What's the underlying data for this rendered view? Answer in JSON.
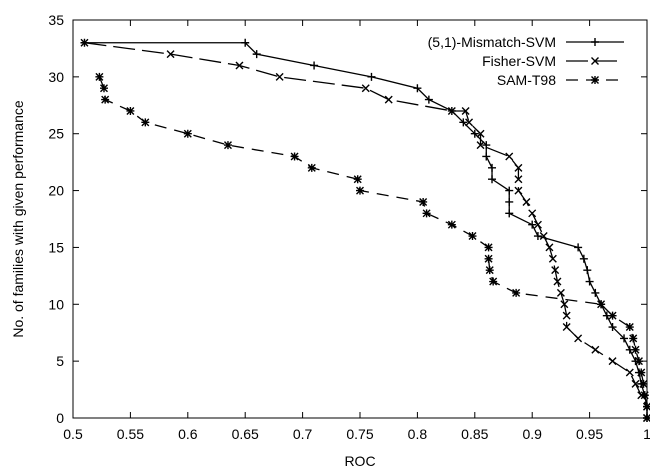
{
  "chart_data": {
    "type": "line",
    "xlabel": "ROC",
    "ylabel": "No. of families with given performance",
    "xlim": [
      0.5,
      1.0
    ],
    "ylim": [
      0,
      35
    ],
    "xticks": [
      "0.5",
      "0.55",
      "0.6",
      "0.65",
      "0.7",
      "0.75",
      "0.8",
      "0.85",
      "0.9",
      "0.95",
      "1"
    ],
    "yticks": [
      "0",
      "5",
      "10",
      "15",
      "20",
      "25",
      "30",
      "35"
    ],
    "grid": false,
    "legend_position": "top-right",
    "series": [
      {
        "name": "(5,1)-Mismatch-SVM",
        "line_style": "solid",
        "marker": "+",
        "points": [
          [
            0.51,
            33
          ],
          [
            0.65,
            33
          ],
          [
            0.66,
            32
          ],
          [
            0.71,
            31
          ],
          [
            0.76,
            30
          ],
          [
            0.8,
            29
          ],
          [
            0.81,
            28
          ],
          [
            0.83,
            27
          ],
          [
            0.84,
            26
          ],
          [
            0.85,
            25
          ],
          [
            0.86,
            24
          ],
          [
            0.86,
            23
          ],
          [
            0.865,
            22
          ],
          [
            0.865,
            21
          ],
          [
            0.88,
            20
          ],
          [
            0.88,
            19
          ],
          [
            0.88,
            18
          ],
          [
            0.9,
            17
          ],
          [
            0.905,
            16
          ],
          [
            0.94,
            15
          ],
          [
            0.945,
            14
          ],
          [
            0.948,
            13
          ],
          [
            0.95,
            12
          ],
          [
            0.955,
            11
          ],
          [
            0.96,
            10
          ],
          [
            0.965,
            9
          ],
          [
            0.97,
            8
          ],
          [
            0.98,
            7
          ],
          [
            0.985,
            6
          ],
          [
            0.99,
            5
          ],
          [
            0.993,
            4
          ],
          [
            0.995,
            3
          ],
          [
            0.998,
            2
          ],
          [
            1.0,
            1
          ],
          [
            1.0,
            0
          ]
        ]
      },
      {
        "name": "Fisher-SVM",
        "line_style": "long-dash",
        "marker": "x",
        "points": [
          [
            0.51,
            33
          ],
          [
            0.585,
            32
          ],
          [
            0.645,
            31
          ],
          [
            0.68,
            30
          ],
          [
            0.755,
            29
          ],
          [
            0.775,
            28
          ],
          [
            0.83,
            27
          ],
          [
            0.842,
            27
          ],
          [
            0.845,
            26
          ],
          [
            0.855,
            25
          ],
          [
            0.855,
            24
          ],
          [
            0.88,
            23
          ],
          [
            0.888,
            22
          ],
          [
            0.888,
            21
          ],
          [
            0.888,
            20
          ],
          [
            0.895,
            19
          ],
          [
            0.9,
            18
          ],
          [
            0.905,
            17
          ],
          [
            0.91,
            16
          ],
          [
            0.915,
            15
          ],
          [
            0.918,
            14
          ],
          [
            0.92,
            13
          ],
          [
            0.922,
            12
          ],
          [
            0.925,
            11
          ],
          [
            0.928,
            10
          ],
          [
            0.93,
            9
          ],
          [
            0.93,
            8
          ],
          [
            0.94,
            7
          ],
          [
            0.955,
            6
          ],
          [
            0.97,
            5
          ],
          [
            0.985,
            4
          ],
          [
            0.99,
            3
          ],
          [
            0.995,
            2
          ],
          [
            1.0,
            1
          ],
          [
            1.0,
            0
          ]
        ]
      },
      {
        "name": "SAM-T98",
        "line_style": "dashed",
        "marker": "square",
        "points": [
          [
            0.523,
            30
          ],
          [
            0.527,
            29
          ],
          [
            0.528,
            28
          ],
          [
            0.55,
            27
          ],
          [
            0.563,
            26
          ],
          [
            0.6,
            25
          ],
          [
            0.635,
            24
          ],
          [
            0.693,
            23
          ],
          [
            0.708,
            22
          ],
          [
            0.748,
            21
          ],
          [
            0.75,
            20
          ],
          [
            0.805,
            19
          ],
          [
            0.808,
            18
          ],
          [
            0.83,
            17
          ],
          [
            0.848,
            16
          ],
          [
            0.862,
            15
          ],
          [
            0.862,
            14
          ],
          [
            0.863,
            13
          ],
          [
            0.866,
            12
          ],
          [
            0.886,
            11
          ],
          [
            0.96,
            10
          ],
          [
            0.97,
            9
          ],
          [
            0.985,
            8
          ],
          [
            0.988,
            7
          ],
          [
            0.99,
            6
          ],
          [
            0.993,
            5
          ],
          [
            0.995,
            4
          ],
          [
            0.997,
            3
          ],
          [
            0.998,
            2
          ],
          [
            1.0,
            1
          ],
          [
            1.0,
            0
          ]
        ]
      }
    ]
  }
}
